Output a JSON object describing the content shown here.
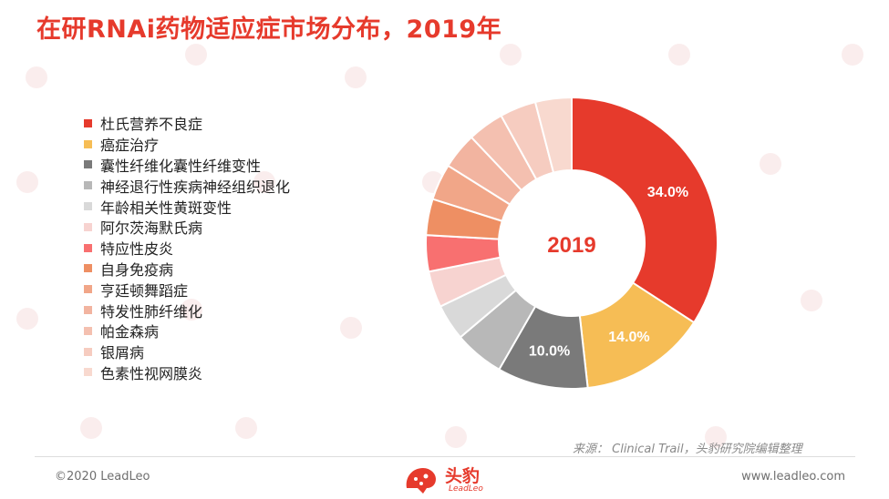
{
  "title": "在研RNAi药物适应症市场分布，2019年",
  "center_label": "2019",
  "source": "来源： Clinical Trail，头豹研究院编辑整理",
  "footer": {
    "copyright": "©2020 LeadLeo",
    "website": "www.leadleo.com",
    "logo_text": "头豹",
    "logo_sub": "LeadLeo"
  },
  "chart_data": {
    "type": "pie",
    "variant": "donut",
    "title": "在研RNAi药物适应症市场分布，2019年",
    "center_label": "2019",
    "legend_position": "left",
    "labeled_values": [
      "34.0%",
      "14.0%",
      "10.0%"
    ],
    "slices": [
      {
        "name": "杜氏营养不良症",
        "value": 34.0,
        "color": "#e63a2c"
      },
      {
        "name": "癌症治疗",
        "value": 14.0,
        "color": "#f6bd55"
      },
      {
        "name": "囊性纤维化囊性纤维变性",
        "value": 10.0,
        "color": "#7a7a7a"
      },
      {
        "name": "神经退行性疾病神经组织退化",
        "value": 5.5,
        "color": "#b8b8b8"
      },
      {
        "name": "年龄相关性黄斑变性",
        "value": 4.0,
        "color": "#d9d9d9"
      },
      {
        "name": "阿尔茨海默氏病",
        "value": 4.0,
        "color": "#f7d3d0"
      },
      {
        "name": "特应性皮炎",
        "value": 4.0,
        "color": "#f87070"
      },
      {
        "name": "自身免疫病",
        "value": 4.0,
        "color": "#ee8f63"
      },
      {
        "name": "亨廷顿舞蹈症",
        "value": 4.0,
        "color": "#f1a688"
      },
      {
        "name": "特发性肺纤维化",
        "value": 4.0,
        "color": "#f2b4a0"
      },
      {
        "name": "帕金森病",
        "value": 4.0,
        "color": "#f4c0b0"
      },
      {
        "name": "银屑病",
        "value": 4.0,
        "color": "#f6ccc0"
      },
      {
        "name": "色素性视网膜炎",
        "value": 4.0,
        "color": "#f8d9cf"
      }
    ]
  }
}
